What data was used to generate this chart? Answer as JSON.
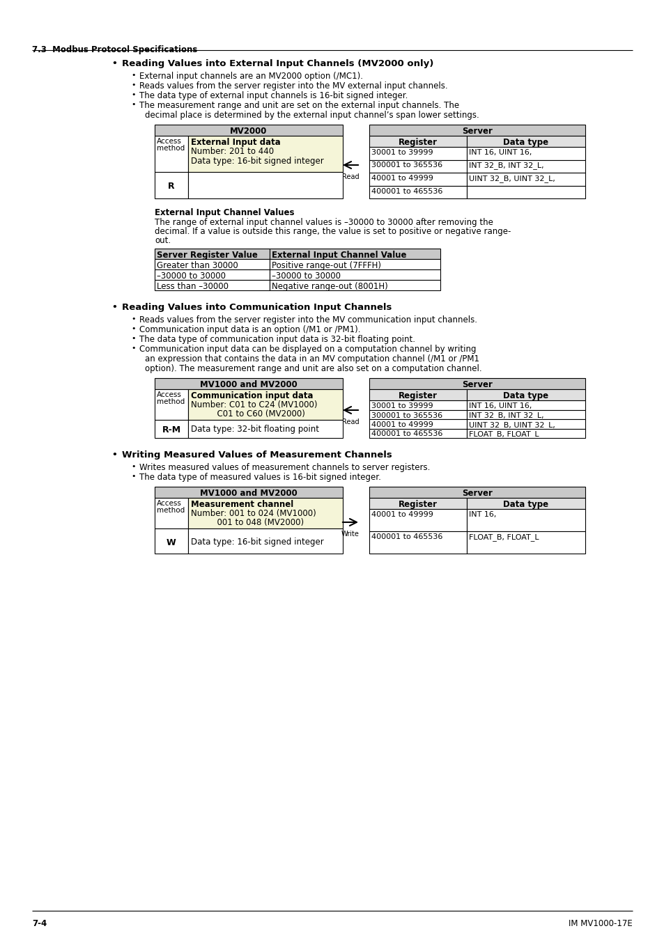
{
  "page_header": "7.3  Modbus Protocol Specifications",
  "footer_left": "7-4",
  "footer_right": "IM MV1000-17E",
  "background_color": "#ffffff",
  "sections": [
    {
      "bullet_main": "Reading Values into External Input Channels (MV2000 only)",
      "bullet_items": [
        "External input channels are an MV2000 option (/MC1).",
        "Reads values from the server register into the MV external input channels.",
        "The data type of external input channels is 16-bit signed integer.",
        "The measurement range and unit are set on the external input channels. The",
        "decimal place is determined by the external input channel’s span lower settings."
      ],
      "left_table_header": "MV2000",
      "left_table_highlight": "External Input data",
      "left_table_line2": "Number: 201 to 440",
      "left_table_line3": "Data type: 16-bit signed integer",
      "left_access": "R",
      "arrow_direction": "left",
      "arrow_label": "Read",
      "right_table_header": "Server",
      "right_col1": [
        "30001 to 39999",
        "300001 to 365536",
        "40001 to 49999",
        "400001 to 465536"
      ],
      "right_col2": [
        "INT 16, UINT 16,",
        "INT 32_B, INT 32_L,",
        "UINT 32_B, UINT 32_L,",
        ""
      ],
      "sub_title": "External Input Channel Values",
      "sub_text": [
        "The range of external input channel values is –30000 to 30000 after removing the",
        "decimal. If a value is outside this range, the value is set to positive or negative range-",
        "out."
      ],
      "sub_table_headers": [
        "Server Register Value",
        "External Input Channel Value"
      ],
      "sub_table_rows": [
        [
          "Greater than 30000",
          "Positive range-out (7FFFH)"
        ],
        [
          "–30000 to 30000",
          "–30000 to 30000"
        ],
        [
          "Less than –30000",
          "Negative range-out (8001H)"
        ]
      ]
    },
    {
      "bullet_main": "Reading Values into Communication Input Channels",
      "bullet_items": [
        "Reads values from the server register into the MV communication input channels.",
        "Communication input data is an option (/M1 or /PM1).",
        "The data type of communication input data is 32-bit floating point.",
        "Communication input data can be displayed on a computation channel by writing",
        "an expression that contains the data in an MV computation channel (/M1 or /PM1",
        "option). The measurement range and unit are also set on a computation channel."
      ],
      "left_table_header": "MV1000 and MV2000",
      "left_table_highlight": "Communication input data",
      "left_table_line2": "Number: C01 to C24 (MV1000)",
      "left_table_line2b": "          C01 to C60 (MV2000)",
      "left_access": "R-M",
      "left_table_line3": "Data type: 32-bit floating point",
      "arrow_direction": "left",
      "arrow_label": "Read",
      "right_table_header": "Server",
      "right_col1": [
        "30001 to 39999",
        "300001 to 365536",
        "40001 to 49999",
        "400001 to 465536"
      ],
      "right_col2": [
        "INT 16, UINT 16,",
        "INT 32_B, INT 32_L,",
        "UINT 32_B, UINT 32_L,",
        "FLOAT_B, FLOAT_L"
      ]
    },
    {
      "bullet_main": "Writing Measured Values of Measurement Channels",
      "bullet_items": [
        "Writes measured values of measurement channels to server registers.",
        "The data type of measured values is 16-bit signed integer."
      ],
      "left_table_header": "MV1000 and MV2000",
      "left_table_highlight": "Measurement channel",
      "left_table_line2": "Number: 001 to 024 (MV1000)",
      "left_table_line2b": "          001 to 048 (MV2000)",
      "left_access": "W",
      "left_table_line3": "Data type: 16-bit signed integer",
      "arrow_direction": "right",
      "arrow_label": "Write",
      "right_table_header": "Server",
      "right_col1": [
        "40001 to 49999",
        "400001 to 465536"
      ],
      "right_col2": [
        "INT 16,",
        "FLOAT_B, FLOAT_L"
      ]
    }
  ]
}
